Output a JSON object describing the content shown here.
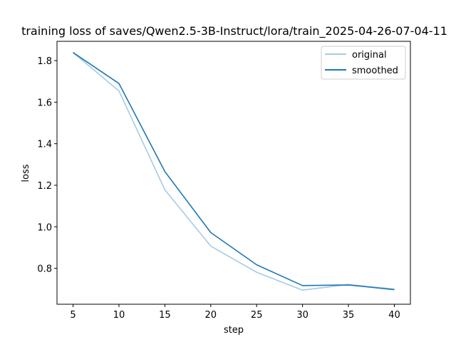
{
  "chart_data": {
    "type": "line",
    "title": "training loss of saves/Qwen2.5-3B-Instruct/lora/train_2025-04-26-07-04-11",
    "xlabel": "step",
    "ylabel": "loss",
    "x": [
      5,
      10,
      15,
      20,
      25,
      30,
      35,
      40
    ],
    "xticks": [
      "5",
      "10",
      "15",
      "20",
      "25",
      "30",
      "35",
      "40"
    ],
    "yticks": [
      "0.8",
      "1.0",
      "1.2",
      "1.4",
      "1.6",
      "1.8"
    ],
    "xlim": [
      3.25,
      41.75
    ],
    "ylim": [
      0.627,
      1.893
    ],
    "legend_position": "top-right",
    "series": [
      {
        "name": "original",
        "color": "#a6cbe3",
        "values": [
          1.839,
          1.654,
          1.178,
          0.907,
          0.781,
          0.695,
          0.722,
          0.7
        ]
      },
      {
        "name": "smoothed",
        "color": "#1f77b4",
        "values": [
          1.839,
          1.69,
          1.266,
          0.972,
          0.817,
          0.717,
          0.72,
          0.697
        ]
      }
    ]
  }
}
